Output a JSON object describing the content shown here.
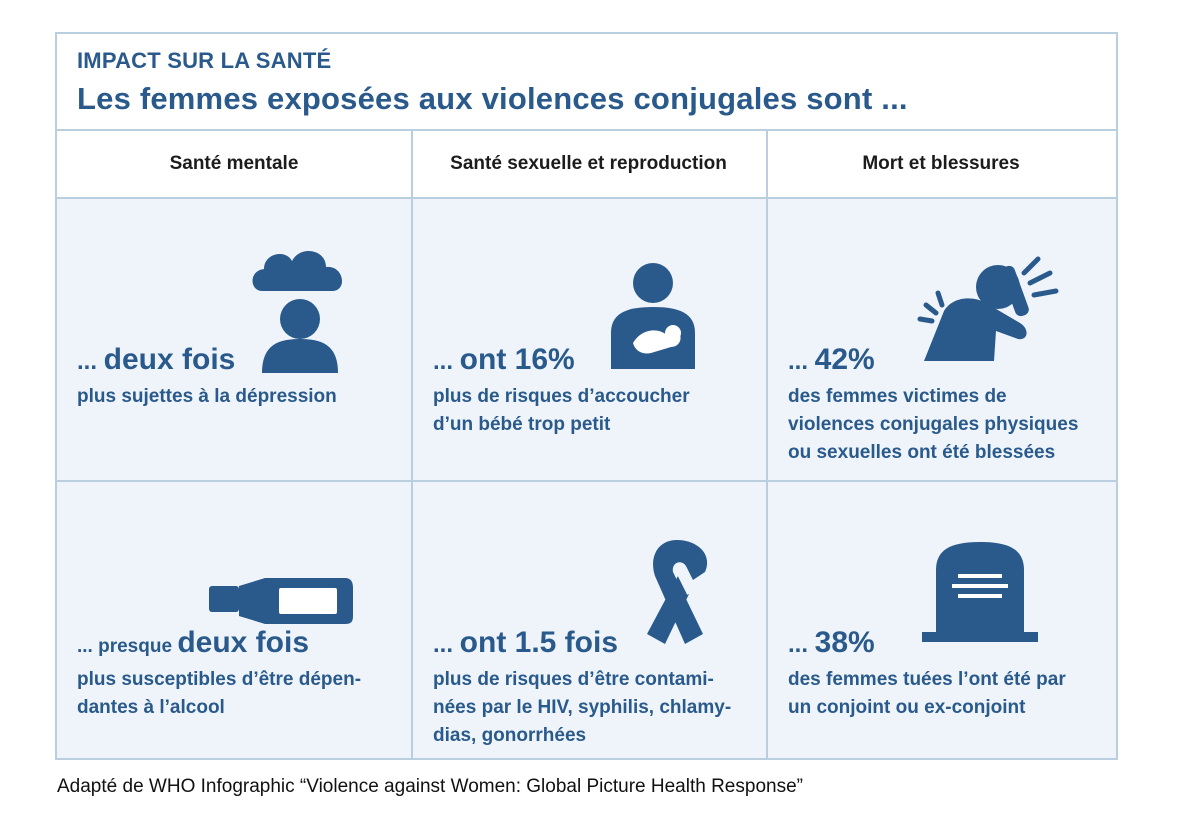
{
  "header": {
    "kicker": "IMPACT SUR LA SANTÉ",
    "title": "Les femmes exposées aux violences conjugales sont ..."
  },
  "columns": [
    "Santé mentale",
    "Santé sexuelle et reproduction",
    "Mort et blessures"
  ],
  "cells": [
    {
      "icon": "rain-cloud-person-icon",
      "prefix": "... ",
      "stat": "deux fois",
      "desc_lines": [
        "plus sujettes à la dépression"
      ]
    },
    {
      "icon": "mother-baby-icon",
      "prefix": "... ",
      "stat": "ont 16%",
      "desc_lines": [
        "plus de risques d’accoucher",
        "d’un bébé trop petit"
      ]
    },
    {
      "icon": "injured-person-icon",
      "prefix": "... ",
      "stat": "42%",
      "desc_lines": [
        "des femmes victimes de",
        "violences conjugales physiques",
        "ou sexuelles ont été blessées"
      ]
    },
    {
      "icon": "bottle-icon",
      "prefix": "... presque ",
      "stat": "deux fois",
      "desc_lines": [
        "plus susceptibles d’être dépen-",
        "dantes à l’alcool"
      ]
    },
    {
      "icon": "awareness-ribbon-icon",
      "prefix": "... ",
      "stat": "ont 1.5 fois",
      "desc_lines": [
        "plus de risques d’être contami-",
        "nées par le HIV, syphilis, chlamy-",
        "dias, gonorrhées"
      ]
    },
    {
      "icon": "tombstone-icon",
      "prefix": "... ",
      "stat": "38%",
      "desc_lines": [
        "des femmes tuées l’ont été par",
        "un conjoint ou ex-conjoint"
      ]
    }
  ],
  "caption": "Adapté de WHO Infographic “Violence against Women: Global Picture Health Response”",
  "colors": {
    "accent": "#2a5a8b",
    "cell_background": "#eef4fa",
    "border": "#b9cfe0"
  }
}
